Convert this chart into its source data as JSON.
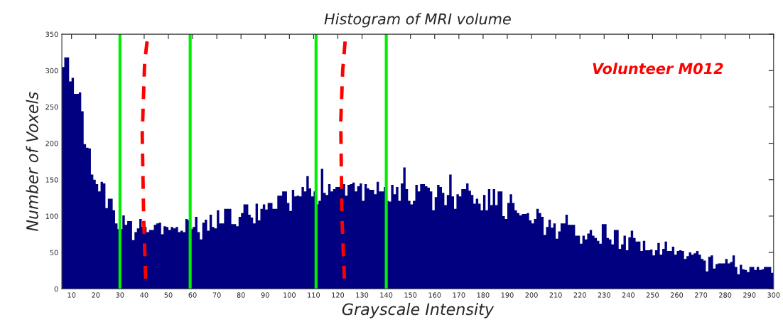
{
  "chart_data": {
    "type": "histogram",
    "title": "Histogram of MRI volume",
    "xlabel": "Grayscale Intensity",
    "ylabel": "Number of Voxels",
    "color": "#000080",
    "bins": [
      6,
      7,
      8,
      9,
      10,
      11,
      12,
      13,
      14,
      15,
      16,
      17,
      18,
      19,
      20,
      21,
      22,
      23,
      24,
      25,
      26,
      27,
      28,
      29,
      30,
      31,
      32,
      33,
      34,
      35,
      36,
      37,
      38,
      39,
      40,
      41,
      42,
      43,
      44,
      45,
      46,
      47,
      48,
      49,
      50,
      51,
      52,
      53,
      54,
      55,
      56,
      57,
      58,
      59,
      60,
      61,
      62,
      63,
      64,
      65,
      66,
      67,
      68,
      69,
      70,
      71,
      72,
      73,
      74,
      75,
      76,
      77,
      78,
      79,
      80,
      81,
      82,
      83,
      84,
      85,
      86,
      87,
      88,
      89,
      90,
      91,
      92,
      93,
      94,
      95,
      96,
      97,
      98,
      99,
      100,
      101,
      102,
      103,
      104,
      105,
      106,
      107,
      108,
      109,
      110,
      111,
      112,
      113,
      114,
      115,
      116,
      117,
      118,
      119,
      120,
      121,
      122,
      123,
      124,
      125,
      126,
      127,
      128,
      129,
      130,
      131,
      132,
      133,
      134,
      135,
      136,
      137,
      138,
      139,
      140,
      141,
      142,
      143,
      144,
      145,
      146,
      147,
      148,
      149,
      150,
      151,
      152,
      153,
      154,
      155,
      156,
      157,
      158,
      159,
      160,
      161,
      162,
      163,
      164,
      165,
      166,
      167,
      168,
      169,
      170,
      171,
      172,
      173,
      174,
      175,
      176,
      177,
      178,
      179,
      180,
      181,
      182,
      183,
      184,
      185,
      186,
      187,
      188,
      189,
      190,
      191,
      192,
      193,
      194,
      195,
      196,
      197,
      198,
      199,
      200,
      201,
      202,
      203,
      204,
      205,
      206,
      207,
      208,
      209,
      210,
      211,
      212,
      213,
      214,
      215,
      216,
      217,
      218,
      219,
      220,
      221,
      222,
      223,
      224,
      225,
      226,
      227,
      228,
      229,
      230,
      231,
      232,
      233,
      234,
      235,
      236,
      237,
      238,
      239,
      240,
      241,
      242,
      243,
      244,
      245,
      246,
      247,
      248,
      249,
      250,
      251,
      252,
      253,
      254,
      255,
      256,
      257,
      258,
      259,
      260,
      261,
      262,
      263,
      264,
      265,
      266,
      267,
      268,
      269,
      270,
      271,
      272,
      273,
      274,
      275,
      276,
      277,
      278,
      279,
      280,
      281,
      282,
      283,
      284,
      285,
      286,
      287,
      288,
      289,
      290,
      291,
      292,
      293,
      294,
      295,
      296,
      297,
      298,
      299,
      300
    ],
    "values": [
      305,
      318,
      318,
      285,
      290,
      268,
      268,
      270,
      244,
      199,
      194,
      193,
      157,
      150,
      144,
      134,
      147,
      145,
      111,
      124,
      124,
      108,
      90,
      82,
      82,
      101,
      88,
      93,
      93,
      67,
      78,
      83,
      96,
      85,
      85,
      78,
      81,
      81,
      88,
      90,
      91,
      75,
      86,
      85,
      81,
      85,
      83,
      85,
      78,
      80,
      78,
      96,
      94,
      82,
      85,
      99,
      78,
      68,
      91,
      95,
      80,
      102,
      85,
      83,
      108,
      90,
      90,
      110,
      110,
      110,
      89,
      89,
      86,
      99,
      104,
      116,
      116,
      102,
      98,
      90,
      117,
      94,
      110,
      116,
      109,
      118,
      118,
      110,
      110,
      128,
      128,
      134,
      134,
      118,
      107,
      136,
      127,
      128,
      127,
      140,
      134,
      155,
      138,
      127,
      134,
      116,
      121,
      165,
      132,
      129,
      144,
      134,
      137,
      140,
      140,
      144,
      144,
      128,
      143,
      144,
      146,
      134,
      141,
      145,
      121,
      144,
      138,
      136,
      136,
      130,
      147,
      134,
      134,
      140,
      121,
      120,
      143,
      130,
      140,
      121,
      145,
      167,
      137,
      121,
      116,
      121,
      143,
      134,
      144,
      144,
      141,
      139,
      134,
      108,
      126,
      143,
      140,
      132,
      115,
      129,
      157,
      127,
      110,
      130,
      127,
      137,
      137,
      145,
      135,
      129,
      117,
      124,
      117,
      108,
      129,
      108,
      137,
      115,
      137,
      115,
      134,
      134,
      100,
      96,
      118,
      130,
      118,
      108,
      104,
      101,
      103,
      103,
      104,
      94,
      90,
      96,
      110,
      104,
      99,
      74,
      85,
      95,
      84,
      90,
      69,
      79,
      90,
      90,
      102,
      88,
      88,
      88,
      73,
      73,
      62,
      73,
      68,
      76,
      81,
      73,
      70,
      66,
      62,
      89,
      89,
      70,
      68,
      61,
      81,
      81,
      55,
      61,
      73,
      53,
      71,
      80,
      70,
      65,
      65,
      52,
      66,
      53,
      53,
      54,
      46,
      53,
      63,
      47,
      55,
      65,
      52,
      52,
      58,
      47,
      52,
      53,
      52,
      41,
      45,
      50,
      47,
      49,
      52,
      47,
      41,
      39,
      24,
      44,
      46,
      28,
      34,
      35,
      35,
      35,
      41,
      35,
      37,
      46,
      30,
      20,
      33,
      27,
      26,
      23,
      30,
      30,
      26,
      30,
      26,
      27,
      30,
      30,
      30,
      22
    ],
    "series": [
      {
        "type": "line",
        "color": "#ff0000",
        "line_style": "dashed",
        "x": [
          41.2,
          40.2,
          39.2,
          39.8,
          40.6
        ],
        "values": [
          340,
          311,
          212,
          98,
          14
        ]
      },
      {
        "type": "line",
        "color": "#ff0000",
        "line_style": "dashed",
        "x": [
          123,
          122,
          121.2,
          121.7,
          122.7
        ],
        "values": [
          340,
          300,
          229,
          98,
          14
        ]
      }
    ],
    "ref_lines": [
      {
        "axis": "x",
        "value": 30,
        "color": "#00ee00"
      },
      {
        "axis": "x",
        "value": 59,
        "color": "#00ee00"
      },
      {
        "axis": "x",
        "value": 111,
        "color": "#00ee00"
      },
      {
        "axis": "x",
        "value": 140,
        "color": "#00ee00"
      }
    ],
    "annotations": [
      "Volunteer M012"
    ],
    "xlim": [
      6,
      300
    ],
    "xticks": [
      10,
      20,
      30,
      40,
      50,
      60,
      70,
      80,
      90,
      100,
      110,
      120,
      130,
      140,
      150,
      160,
      170,
      180,
      190,
      200,
      210,
      220,
      230,
      240,
      250,
      260,
      270,
      280,
      290,
      300
    ],
    "ylim": [
      0,
      350
    ],
    "yticks": [
      0,
      50,
      100,
      150,
      200,
      250,
      300,
      350
    ],
    "grid": false,
    "legend": false
  }
}
